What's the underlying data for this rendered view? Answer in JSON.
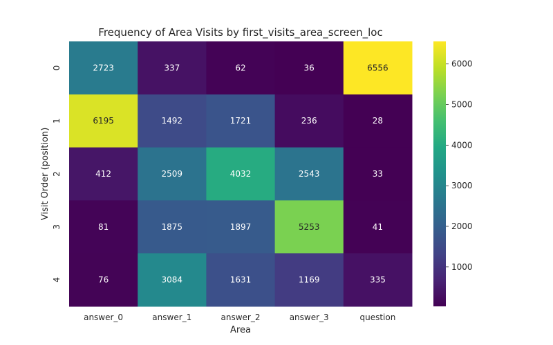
{
  "chart_data": {
    "type": "heatmap",
    "title": "Frequency of Area Visits by first_visits_area_screen_loc",
    "xlabel": "Area",
    "ylabel": "Visit Order (position)",
    "x_categories": [
      "answer_0",
      "answer_1",
      "answer_2",
      "answer_3",
      "question"
    ],
    "y_categories": [
      "0",
      "1",
      "2",
      "3",
      "4"
    ],
    "values": [
      [
        2723,
        337,
        62,
        36,
        6556
      ],
      [
        6195,
        1492,
        1721,
        236,
        28
      ],
      [
        412,
        2509,
        4032,
        2543,
        33
      ],
      [
        81,
        1875,
        1897,
        5253,
        41
      ],
      [
        76,
        3084,
        1631,
        1169,
        335
      ]
    ],
    "colormap": "viridis",
    "value_range": [
      28,
      6556
    ],
    "colorbar_ticks": [
      1000,
      2000,
      3000,
      4000,
      5000,
      6000
    ],
    "annotate_cells": true,
    "grid": false,
    "legend": "colorbar-right"
  }
}
